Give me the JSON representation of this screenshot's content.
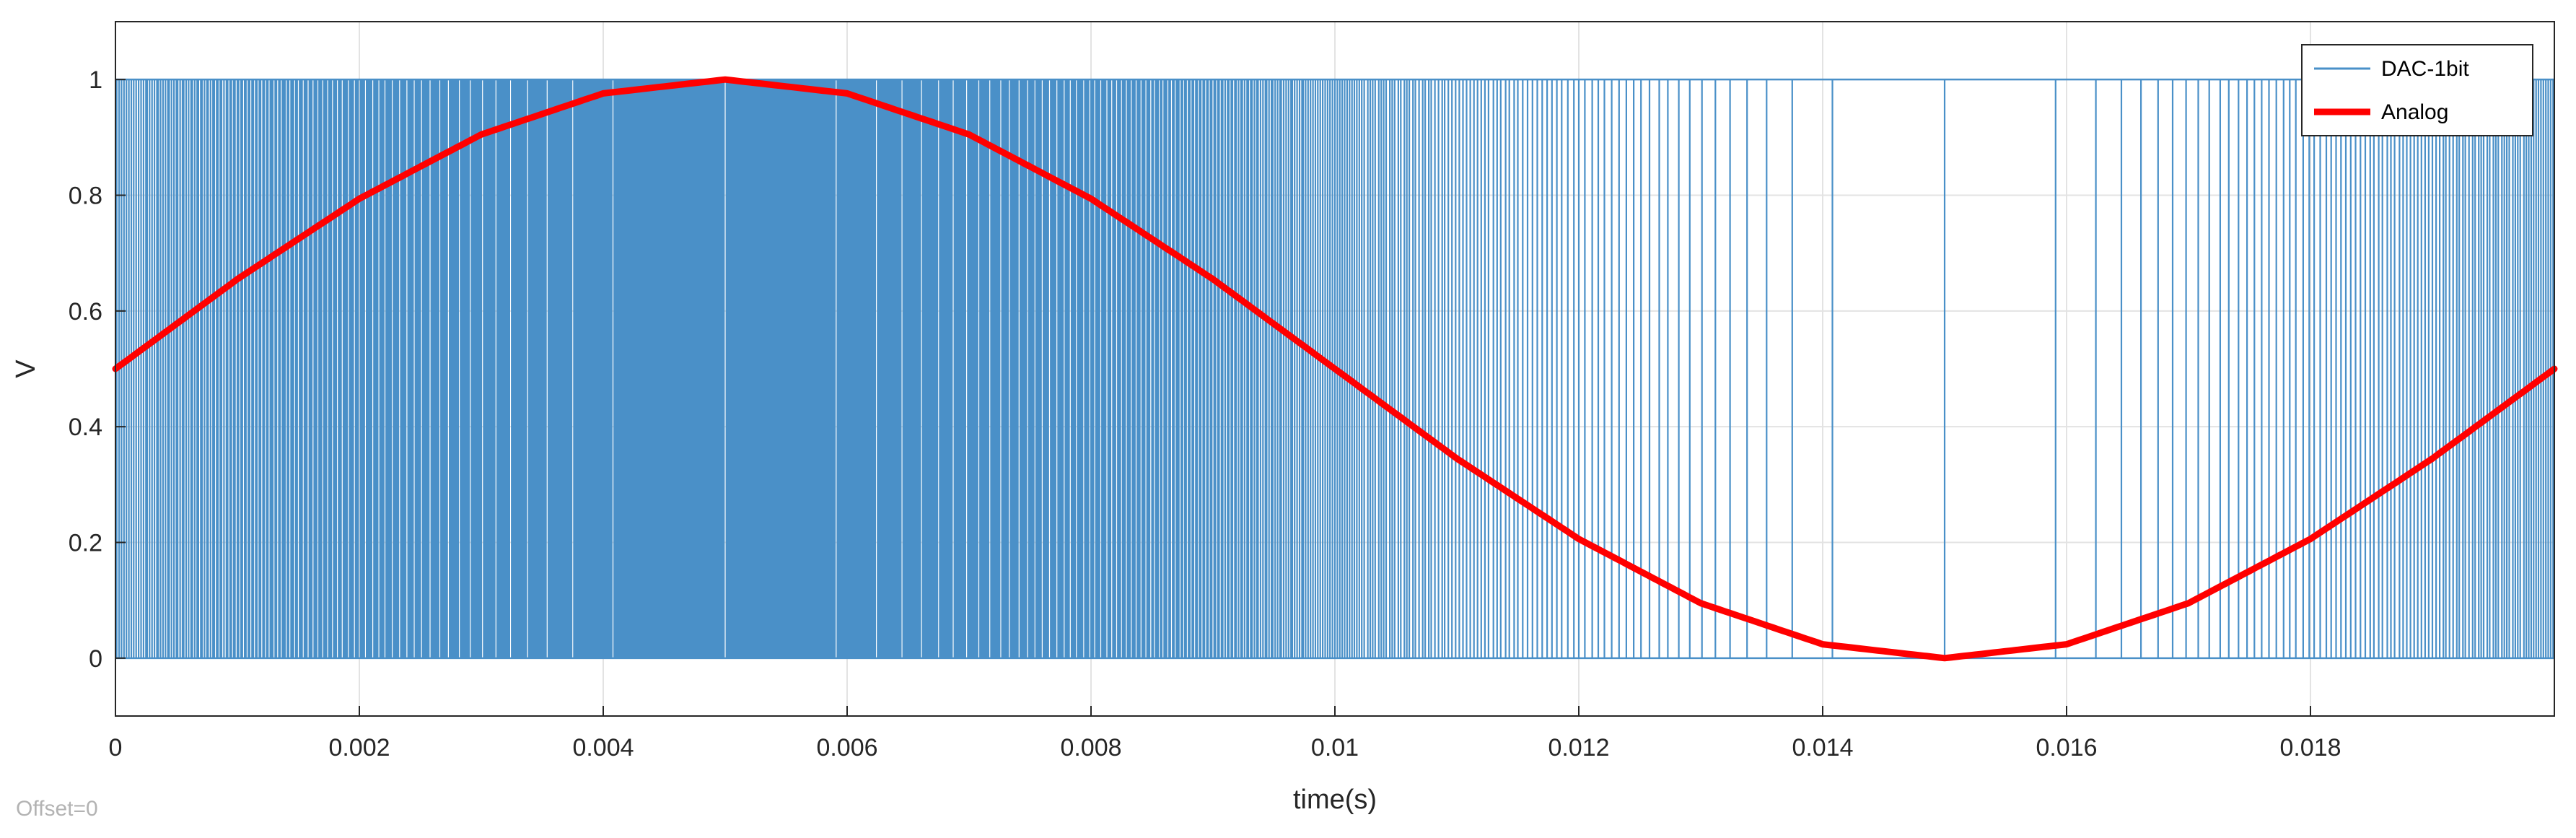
{
  "chart_data": {
    "type": "line",
    "xlabel": "time(s)",
    "ylabel": "V",
    "xlim": [
      0,
      0.02
    ],
    "ylim": [
      -0.1,
      1.1
    ],
    "x_ticks": [
      "0",
      "0.002",
      "0.004",
      "0.006",
      "0.008",
      "0.01",
      "0.012",
      "0.014",
      "0.016",
      "0.018"
    ],
    "x_tick_values": [
      0,
      0.002,
      0.004,
      0.006,
      0.008,
      0.01,
      0.012,
      0.014,
      0.016,
      0.018
    ],
    "y_ticks": [
      "0",
      "0.2",
      "0.4",
      "0.6",
      "0.8",
      "1"
    ],
    "y_tick_values": [
      0,
      0.2,
      0.4,
      0.6,
      0.8,
      1
    ],
    "grid": true,
    "legend_position": "top-right",
    "series": [
      {
        "name": "DAC-1bit",
        "style": "step-pulse",
        "color": "#4a90c8",
        "levels": [
          0,
          1
        ],
        "pulse_train": "pdm encoding of the Analog series",
        "pulse_count": 2000
      },
      {
        "name": "Analog",
        "style": "line",
        "color": "#ff0000",
        "x": [
          0,
          0.001,
          0.002,
          0.003,
          0.004,
          0.005,
          0.006,
          0.007,
          0.008,
          0.009,
          0.01,
          0.011,
          0.012,
          0.013,
          0.014,
          0.015,
          0.016,
          0.017,
          0.018,
          0.019,
          0.02
        ],
        "y": [
          0.5,
          0.655,
          0.794,
          0.905,
          0.976,
          1.0,
          0.976,
          0.905,
          0.794,
          0.655,
          0.5,
          0.345,
          0.206,
          0.095,
          0.024,
          0.0,
          0.024,
          0.095,
          0.206,
          0.345,
          0.5
        ]
      }
    ],
    "annotation": "Offset=0"
  }
}
